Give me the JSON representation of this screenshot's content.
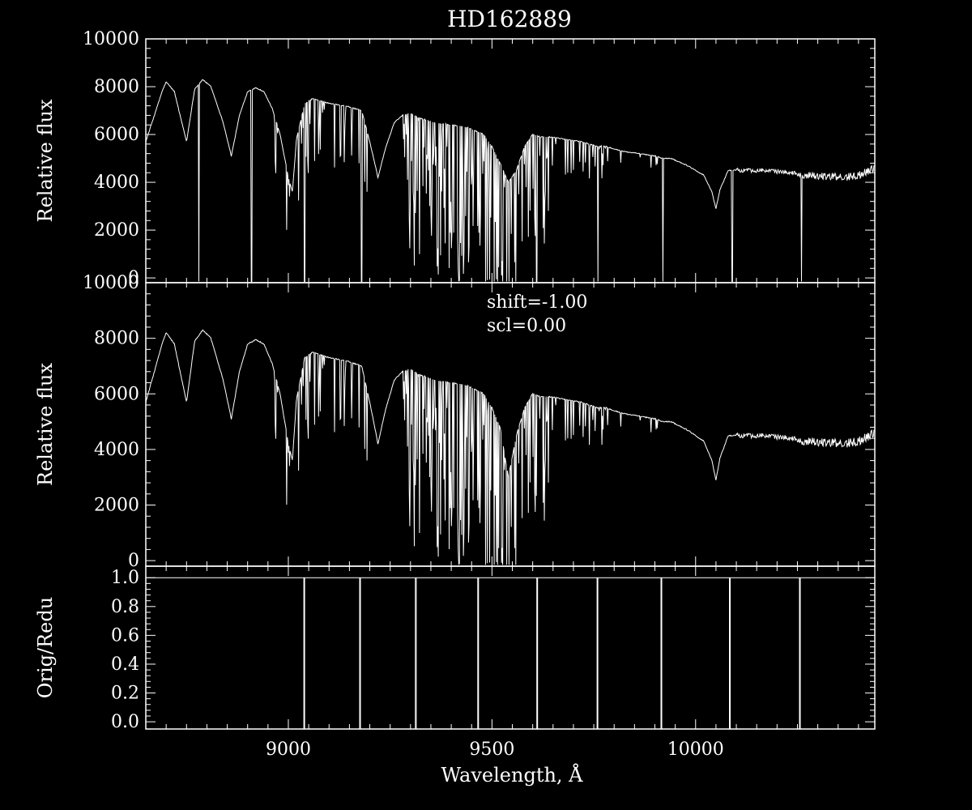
{
  "title": "HD162889",
  "xlabel": "Wavelength, Å",
  "annotation": {
    "shift": "shift=-1.00",
    "scl": "scl=0.00"
  },
  "colors": {
    "background": "#000000",
    "foreground": "#ffffff"
  },
  "chart_data": [
    {
      "type": "line",
      "panel": "top",
      "title": "HD162889",
      "xlabel": "",
      "ylabel": "Relative flux",
      "xlim": [
        8650,
        10440
      ],
      "ylim": [
        -200,
        10000
      ],
      "yticks": [
        0,
        2000,
        4000,
        6000,
        8000,
        10000
      ],
      "ytick_labels": [
        "0",
        "2000",
        "4000",
        "6000",
        "8000",
        "10000"
      ],
      "variant": "orig",
      "description_series": "Stellar spectrum (original), flux vs wavelength",
      "order_gaps": [
        8780,
        8910,
        9040,
        9180,
        9610,
        9760,
        9920,
        10090,
        10260
      ],
      "anchors": {
        "x": [
          8650,
          8690,
          8700,
          8720,
          8750,
          8770,
          8790,
          8810,
          8840,
          8860,
          8880,
          8900,
          8920,
          8940,
          8960,
          8980,
          9000,
          9010,
          9020,
          9040,
          9060,
          9080,
          9100,
          9140,
          9180,
          9200,
          9220,
          9240,
          9260,
          9280,
          9300,
          9320,
          9340,
          9360,
          9400,
          9440,
          9480,
          9500,
          9520,
          9540,
          9560,
          9580,
          9600,
          9620,
          9640,
          9680,
          9720,
          9760,
          9780,
          9820,
          9860,
          9900,
          9920,
          9940,
          9980,
          10020,
          10040,
          10050,
          10060,
          10080,
          10100,
          10120,
          10160,
          10200,
          10240,
          10260,
          10280,
          10320,
          10360,
          10400,
          10440
        ],
        "y": [
          5700,
          7800,
          8200,
          7800,
          5700,
          7900,
          8300,
          8000,
          6500,
          5100,
          6800,
          7800,
          7950,
          7800,
          7100,
          6000,
          4200,
          3600,
          5800,
          7300,
          7500,
          7400,
          7300,
          7200,
          7000,
          5700,
          4200,
          5500,
          6500,
          6800,
          6900,
          6700,
          6600,
          6500,
          6400,
          6300,
          6000,
          5500,
          4800,
          4000,
          4500,
          5500,
          6000,
          5900,
          5900,
          5800,
          5700,
          5500,
          5500,
          5300,
          5200,
          5100,
          5000,
          5000,
          4700,
          4300,
          3600,
          2900,
          3700,
          4500,
          4500,
          4500,
          4500,
          4450,
          4400,
          4300,
          4300,
          4250,
          4200,
          4300,
          4600
        ]
      }
    },
    {
      "type": "line",
      "panel": "middle",
      "xlabel": "",
      "ylabel": "Relative flux",
      "xlim": [
        8650,
        10440
      ],
      "ylim": [
        -200,
        10000
      ],
      "yticks": [
        0,
        2000,
        4000,
        6000,
        8000,
        10000
      ],
      "ytick_labels": [
        "0",
        "2000",
        "4000",
        "6000",
        "8000",
        "10000"
      ],
      "variant": "reduced",
      "description_series": "Stellar spectrum (reduced), flux vs wavelength",
      "order_gaps": [],
      "anchors": {
        "x": [
          8650,
          8690,
          8700,
          8720,
          8750,
          8770,
          8790,
          8810,
          8840,
          8860,
          8880,
          8900,
          8920,
          8940,
          8960,
          8980,
          9000,
          9010,
          9020,
          9040,
          9060,
          9080,
          9100,
          9140,
          9180,
          9200,
          9220,
          9240,
          9260,
          9280,
          9300,
          9320,
          9340,
          9360,
          9400,
          9440,
          9480,
          9500,
          9520,
          9540,
          9560,
          9580,
          9600,
          9620,
          9640,
          9680,
          9720,
          9760,
          9780,
          9820,
          9860,
          9900,
          9920,
          9940,
          9980,
          10020,
          10040,
          10050,
          10060,
          10080,
          10100,
          10120,
          10160,
          10200,
          10240,
          10260,
          10280,
          10320,
          10360,
          10400,
          10440
        ],
        "y": [
          5700,
          7800,
          8200,
          7800,
          5700,
          7900,
          8300,
          8000,
          6500,
          5100,
          6800,
          7800,
          7950,
          7800,
          7100,
          6000,
          4200,
          3600,
          5800,
          7300,
          7500,
          7400,
          7300,
          7200,
          7000,
          5700,
          4200,
          5500,
          6500,
          6800,
          6900,
          6700,
          6600,
          6500,
          6400,
          6300,
          6000,
          5500,
          4800,
          3000,
          4500,
          5500,
          6000,
          5900,
          5900,
          5800,
          5700,
          5500,
          5500,
          5300,
          5200,
          5100,
          5000,
          5000,
          4700,
          4300,
          3600,
          2900,
          3700,
          4500,
          4500,
          4500,
          4500,
          4450,
          4400,
          4300,
          4300,
          4250,
          4200,
          4300,
          4600
        ]
      }
    },
    {
      "type": "line",
      "panel": "bottom",
      "xlabel": "Wavelength, Å",
      "ylabel": "Orig/Redu",
      "xlim": [
        8650,
        10440
      ],
      "ylim": [
        -0.05,
        1.08
      ],
      "yticks": [
        0.0,
        0.2,
        0.4,
        0.6,
        0.8,
        1.0
      ],
      "ytick_labels": [
        "0.0",
        "0.2",
        "0.4",
        "0.6",
        "0.8",
        "1.0"
      ],
      "xticks": [
        9000,
        9500,
        10000
      ],
      "xtick_labels": [
        "9000",
        "9500",
        "10000"
      ],
      "series": [
        {
          "x": [
            8650,
            9038,
            9038,
            9040,
            9040,
            9175,
            9175,
            9177,
            9177,
            9312,
            9312,
            9314,
            9314,
            9465,
            9465,
            9467,
            9467,
            9610,
            9610,
            9612,
            9612,
            9758,
            9758,
            9760,
            9760,
            9915,
            9915,
            9917,
            9917,
            10083,
            10083,
            10085,
            10085,
            10255,
            10255,
            10257,
            10257,
            10440
          ],
          "y": [
            1.0,
            1.0,
            -0.05,
            -0.05,
            1.0,
            1.0,
            -0.05,
            -0.05,
            1.0,
            1.0,
            -0.05,
            -0.05,
            1.0,
            1.0,
            -0.05,
            -0.05,
            1.0,
            1.0,
            -0.05,
            -0.05,
            1.0,
            1.0,
            -0.05,
            -0.05,
            1.0,
            1.0,
            -0.05,
            -0.05,
            1.0,
            1.0,
            -0.05,
            -0.05,
            1.0,
            1.0,
            -0.05,
            -0.05,
            1.0,
            1.0
          ]
        }
      ]
    }
  ]
}
